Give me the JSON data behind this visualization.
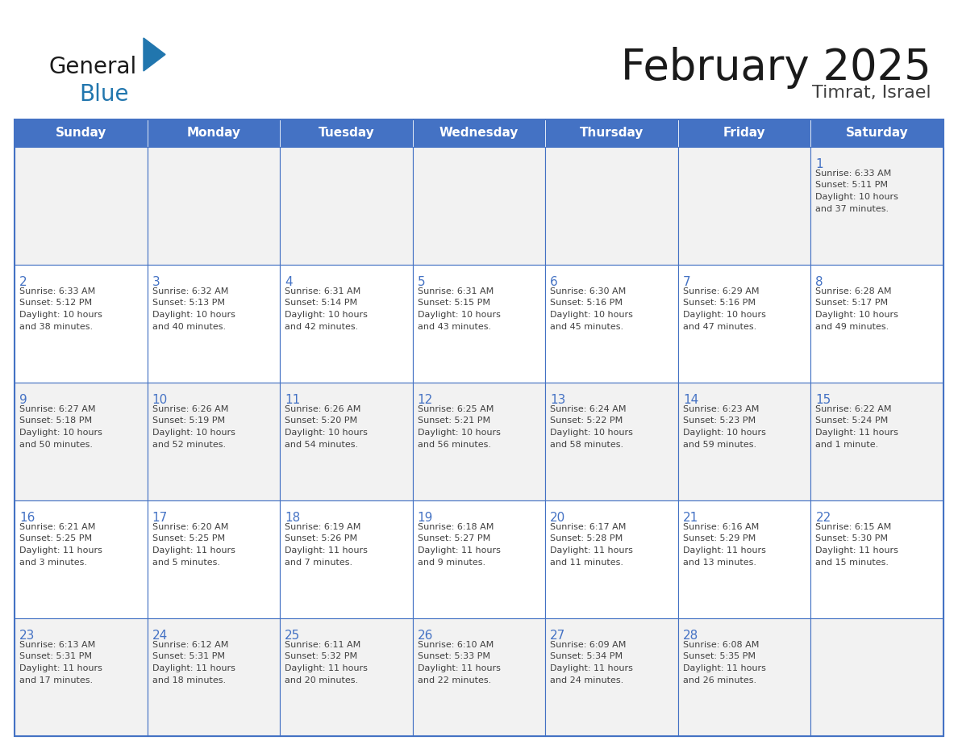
{
  "title": "February 2025",
  "subtitle": "Timrat, Israel",
  "days_of_week": [
    "Sunday",
    "Monday",
    "Tuesday",
    "Wednesday",
    "Thursday",
    "Friday",
    "Saturday"
  ],
  "header_bg": "#4472C4",
  "header_text": "#FFFFFF",
  "cell_bg_alt": "#F2F2F2",
  "cell_bg_white": "#FFFFFF",
  "cell_border": "#4472C4",
  "day_num_color": "#4472C4",
  "info_text_color": "#404040",
  "title_color": "#1a1a1a",
  "logo_black": "#1a1a1a",
  "logo_blue": "#2176AE",
  "triangle_blue": "#2176AE",
  "weeks": [
    [
      {
        "day": null,
        "info": ""
      },
      {
        "day": null,
        "info": ""
      },
      {
        "day": null,
        "info": ""
      },
      {
        "day": null,
        "info": ""
      },
      {
        "day": null,
        "info": ""
      },
      {
        "day": null,
        "info": ""
      },
      {
        "day": 1,
        "info": "Sunrise: 6:33 AM\nSunset: 5:11 PM\nDaylight: 10 hours\nand 37 minutes."
      }
    ],
    [
      {
        "day": 2,
        "info": "Sunrise: 6:33 AM\nSunset: 5:12 PM\nDaylight: 10 hours\nand 38 minutes."
      },
      {
        "day": 3,
        "info": "Sunrise: 6:32 AM\nSunset: 5:13 PM\nDaylight: 10 hours\nand 40 minutes."
      },
      {
        "day": 4,
        "info": "Sunrise: 6:31 AM\nSunset: 5:14 PM\nDaylight: 10 hours\nand 42 minutes."
      },
      {
        "day": 5,
        "info": "Sunrise: 6:31 AM\nSunset: 5:15 PM\nDaylight: 10 hours\nand 43 minutes."
      },
      {
        "day": 6,
        "info": "Sunrise: 6:30 AM\nSunset: 5:16 PM\nDaylight: 10 hours\nand 45 minutes."
      },
      {
        "day": 7,
        "info": "Sunrise: 6:29 AM\nSunset: 5:16 PM\nDaylight: 10 hours\nand 47 minutes."
      },
      {
        "day": 8,
        "info": "Sunrise: 6:28 AM\nSunset: 5:17 PM\nDaylight: 10 hours\nand 49 minutes."
      }
    ],
    [
      {
        "day": 9,
        "info": "Sunrise: 6:27 AM\nSunset: 5:18 PM\nDaylight: 10 hours\nand 50 minutes."
      },
      {
        "day": 10,
        "info": "Sunrise: 6:26 AM\nSunset: 5:19 PM\nDaylight: 10 hours\nand 52 minutes."
      },
      {
        "day": 11,
        "info": "Sunrise: 6:26 AM\nSunset: 5:20 PM\nDaylight: 10 hours\nand 54 minutes."
      },
      {
        "day": 12,
        "info": "Sunrise: 6:25 AM\nSunset: 5:21 PM\nDaylight: 10 hours\nand 56 minutes."
      },
      {
        "day": 13,
        "info": "Sunrise: 6:24 AM\nSunset: 5:22 PM\nDaylight: 10 hours\nand 58 minutes."
      },
      {
        "day": 14,
        "info": "Sunrise: 6:23 AM\nSunset: 5:23 PM\nDaylight: 10 hours\nand 59 minutes."
      },
      {
        "day": 15,
        "info": "Sunrise: 6:22 AM\nSunset: 5:24 PM\nDaylight: 11 hours\nand 1 minute."
      }
    ],
    [
      {
        "day": 16,
        "info": "Sunrise: 6:21 AM\nSunset: 5:25 PM\nDaylight: 11 hours\nand 3 minutes."
      },
      {
        "day": 17,
        "info": "Sunrise: 6:20 AM\nSunset: 5:25 PM\nDaylight: 11 hours\nand 5 minutes."
      },
      {
        "day": 18,
        "info": "Sunrise: 6:19 AM\nSunset: 5:26 PM\nDaylight: 11 hours\nand 7 minutes."
      },
      {
        "day": 19,
        "info": "Sunrise: 6:18 AM\nSunset: 5:27 PM\nDaylight: 11 hours\nand 9 minutes."
      },
      {
        "day": 20,
        "info": "Sunrise: 6:17 AM\nSunset: 5:28 PM\nDaylight: 11 hours\nand 11 minutes."
      },
      {
        "day": 21,
        "info": "Sunrise: 6:16 AM\nSunset: 5:29 PM\nDaylight: 11 hours\nand 13 minutes."
      },
      {
        "day": 22,
        "info": "Sunrise: 6:15 AM\nSunset: 5:30 PM\nDaylight: 11 hours\nand 15 minutes."
      }
    ],
    [
      {
        "day": 23,
        "info": "Sunrise: 6:13 AM\nSunset: 5:31 PM\nDaylight: 11 hours\nand 17 minutes."
      },
      {
        "day": 24,
        "info": "Sunrise: 6:12 AM\nSunset: 5:31 PM\nDaylight: 11 hours\nand 18 minutes."
      },
      {
        "day": 25,
        "info": "Sunrise: 6:11 AM\nSunset: 5:32 PM\nDaylight: 11 hours\nand 20 minutes."
      },
      {
        "day": 26,
        "info": "Sunrise: 6:10 AM\nSunset: 5:33 PM\nDaylight: 11 hours\nand 22 minutes."
      },
      {
        "day": 27,
        "info": "Sunrise: 6:09 AM\nSunset: 5:34 PM\nDaylight: 11 hours\nand 24 minutes."
      },
      {
        "day": 28,
        "info": "Sunrise: 6:08 AM\nSunset: 5:35 PM\nDaylight: 11 hours\nand 26 minutes."
      },
      {
        "day": null,
        "info": ""
      }
    ]
  ]
}
